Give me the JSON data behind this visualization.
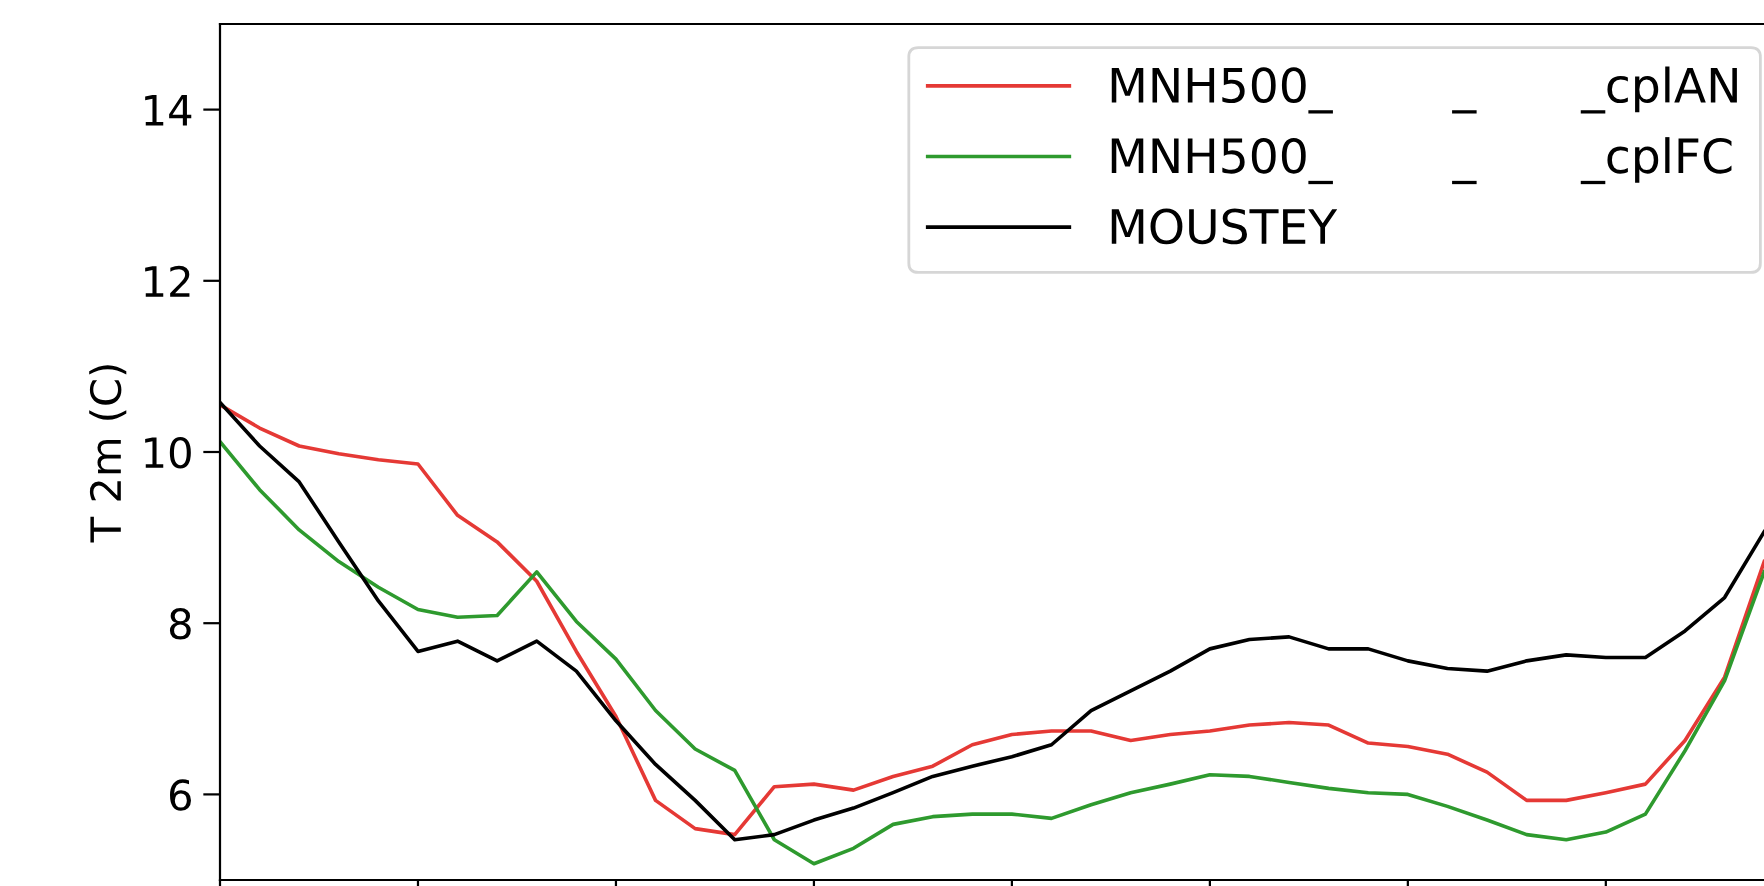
{
  "chart_data": {
    "type": "line",
    "ylabel": "T 2m (C)",
    "categories": [
      null,
      null,
      null,
      null,
      null,
      null,
      null,
      null,
      null,
      null,
      null,
      null,
      null,
      null,
      null,
      null,
      null,
      null,
      null,
      null,
      null,
      null,
      null,
      null,
      null,
      null,
      null,
      null,
      null,
      null,
      null,
      null,
      null,
      null,
      null,
      null,
      null,
      null,
      null,
      null
    ],
    "series": [
      {
        "name": "MNH500_        _       _cplAN",
        "color": "#e53935",
        "values": [
          10.55,
          10.28,
          10.07,
          9.98,
          9.91,
          9.86,
          9.26,
          8.95,
          8.49,
          7.67,
          6.91,
          5.93,
          5.6,
          5.53,
          6.09,
          6.12,
          6.05,
          6.21,
          6.33,
          6.58,
          6.7,
          6.74,
          6.74,
          6.63,
          6.7,
          6.74,
          6.81,
          6.84,
          6.81,
          6.6,
          6.56,
          6.47,
          6.26,
          5.93,
          5.93,
          6.02,
          6.12,
          6.63,
          7.37,
          8.72
        ]
      },
      {
        "name": "MNH500_        _       _cplFC",
        "color": "#2e9a2e",
        "values": [
          10.12,
          9.56,
          9.09,
          8.72,
          8.42,
          8.16,
          8.07,
          8.09,
          8.6,
          8.02,
          7.58,
          6.98,
          6.53,
          6.28,
          5.47,
          5.19,
          5.37,
          5.65,
          5.74,
          5.77,
          5.77,
          5.72,
          5.88,
          6.02,
          6.12,
          6.23,
          6.21,
          6.14,
          6.07,
          6.02,
          6.0,
          5.86,
          5.7,
          5.53,
          5.47,
          5.56,
          5.77,
          6.51,
          7.33,
          8.6
        ]
      },
      {
        "name": "MOUSTEY",
        "color": "#000000",
        "values": [
          10.58,
          10.07,
          9.65,
          8.95,
          8.26,
          7.67,
          7.79,
          7.56,
          7.79,
          7.44,
          6.86,
          6.35,
          5.93,
          5.47,
          5.53,
          5.7,
          5.84,
          6.02,
          6.21,
          6.33,
          6.44,
          6.58,
          6.98,
          7.21,
          7.44,
          7.7,
          7.81,
          7.84,
          7.7,
          7.7,
          7.56,
          7.47,
          7.44,
          7.56,
          7.63,
          7.6,
          7.6,
          7.91,
          8.3,
          9.07
        ]
      }
    ],
    "ylim": [
      5,
      15
    ],
    "yticks": [
      6,
      8,
      10,
      12,
      14
    ],
    "tick_labels": "y",
    "grid": false,
    "legend": "top right",
    "marker": "none",
    "line_style": "solid"
  }
}
